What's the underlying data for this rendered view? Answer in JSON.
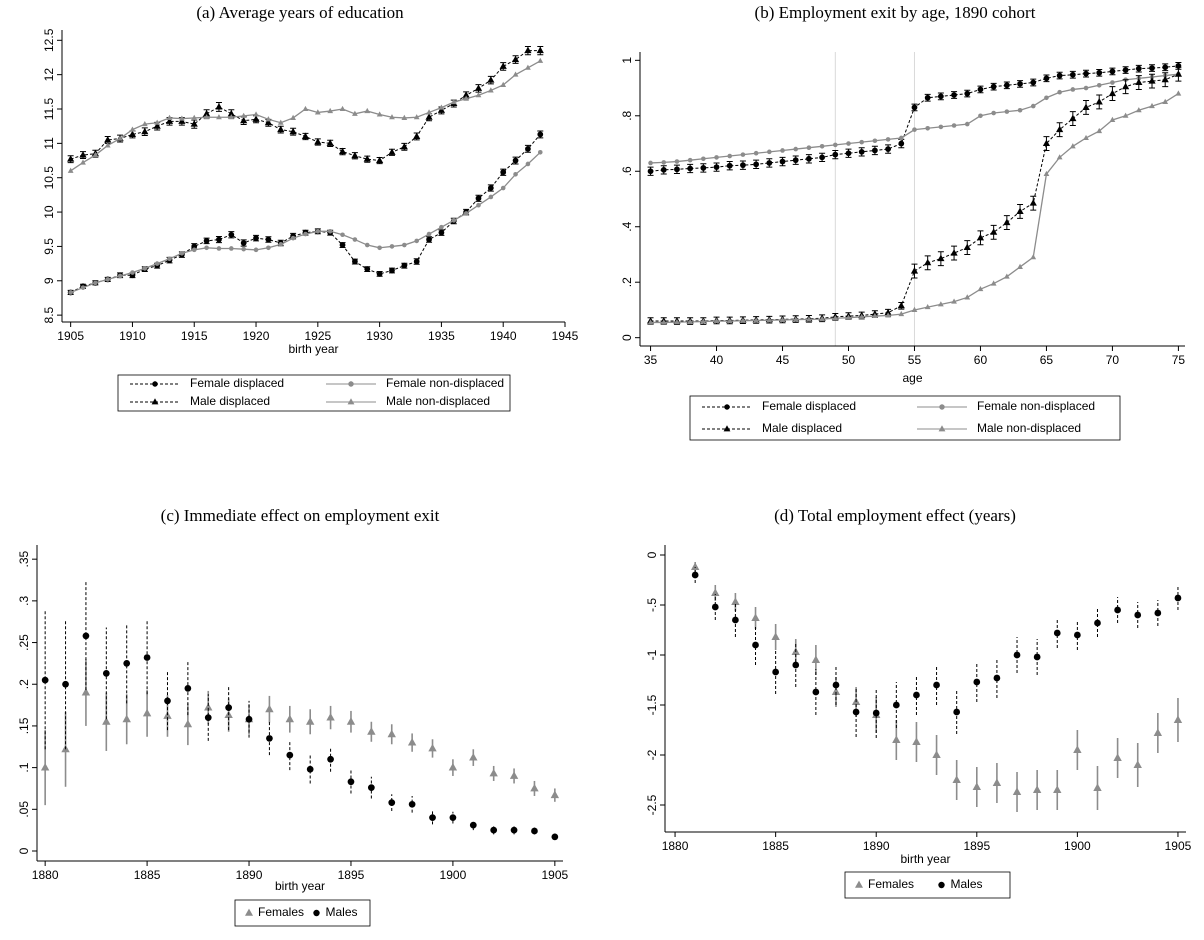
{
  "chart_data": [
    {
      "type": "line",
      "title": "(a) Average years of education",
      "x_label": "birth year",
      "x": [
        1905,
        1906,
        1907,
        1908,
        1909,
        1910,
        1911,
        1912,
        1913,
        1914,
        1915,
        1916,
        1917,
        1918,
        1919,
        1920,
        1921,
        1922,
        1923,
        1924,
        1925,
        1926,
        1927,
        1928,
        1929,
        1930,
        1931,
        1932,
        1933,
        1934,
        1935,
        1936,
        1937,
        1938,
        1939,
        1940,
        1941,
        1942,
        1943
      ],
      "xlim": [
        1904.3,
        1945
      ],
      "xticks": [
        1905,
        1910,
        1915,
        1920,
        1925,
        1930,
        1935,
        1940,
        1945
      ],
      "ylim": [
        8.4,
        12.65
      ],
      "yticks": [
        8.5,
        9,
        9.5,
        10,
        10.5,
        11,
        11.5,
        12,
        12.5
      ],
      "series": [
        {
          "name": "Female displaced",
          "color": "#000000",
          "marker": "circle",
          "line_style": "dashed",
          "values": [
            8.83,
            8.92,
            8.97,
            9.02,
            9.08,
            9.08,
            9.17,
            9.22,
            9.3,
            9.38,
            9.5,
            9.58,
            9.6,
            9.67,
            9.55,
            9.62,
            9.6,
            9.55,
            9.65,
            9.7,
            9.72,
            9.7,
            9.52,
            9.28,
            9.17,
            9.1,
            9.15,
            9.22,
            9.28,
            9.6,
            9.7,
            9.87,
            10.0,
            10.2,
            10.35,
            10.58,
            10.75,
            10.92,
            11.13
          ],
          "errors": [
            0.03,
            0.03,
            0.03,
            0.03,
            0.035,
            0.035,
            0.035,
            0.035,
            0.04,
            0.04,
            0.04,
            0.04,
            0.045,
            0.045,
            0.045,
            0.04,
            0.04,
            0.04,
            0.04,
            0.035,
            0.035,
            0.035,
            0.035,
            0.035,
            0.035,
            0.035,
            0.035,
            0.035,
            0.04,
            0.04,
            0.04,
            0.04,
            0.04,
            0.045,
            0.045,
            0.045,
            0.05,
            0.05,
            0.05
          ]
        },
        {
          "name": "Female non-displaced",
          "color": "#8c8c8c",
          "marker": "circle",
          "line_style": "solid",
          "values": [
            8.83,
            8.9,
            8.97,
            9.02,
            9.07,
            9.12,
            9.18,
            9.25,
            9.32,
            9.4,
            9.45,
            9.48,
            9.47,
            9.47,
            9.46,
            9.45,
            9.48,
            9.53,
            9.62,
            9.68,
            9.72,
            9.72,
            9.67,
            9.6,
            9.52,
            9.48,
            9.5,
            9.52,
            9.58,
            9.68,
            9.78,
            9.88,
            9.98,
            10.1,
            10.22,
            10.35,
            10.55,
            10.7,
            10.87
          ]
        },
        {
          "name": "Male displaced",
          "color": "#000000",
          "marker": "triangle",
          "line_style": "dashed",
          "values": [
            10.77,
            10.83,
            10.85,
            11.05,
            11.07,
            11.13,
            11.17,
            11.25,
            11.32,
            11.32,
            11.28,
            11.43,
            11.53,
            11.43,
            11.33,
            11.35,
            11.3,
            11.2,
            11.17,
            11.1,
            11.02,
            11.0,
            10.88,
            10.82,
            10.77,
            10.75,
            10.87,
            10.95,
            11.1,
            11.38,
            11.48,
            11.58,
            11.7,
            11.8,
            11.92,
            12.12,
            12.22,
            12.35,
            12.35
          ],
          "errors": [
            0.05,
            0.05,
            0.05,
            0.05,
            0.05,
            0.05,
            0.055,
            0.055,
            0.055,
            0.055,
            0.06,
            0.06,
            0.065,
            0.06,
            0.055,
            0.05,
            0.05,
            0.05,
            0.05,
            0.045,
            0.045,
            0.045,
            0.045,
            0.045,
            0.045,
            0.045,
            0.045,
            0.05,
            0.05,
            0.05,
            0.05,
            0.05,
            0.05,
            0.055,
            0.055,
            0.055,
            0.055,
            0.06,
            0.06
          ]
        },
        {
          "name": "Male non-displaced",
          "color": "#8c8c8c",
          "marker": "triangle",
          "line_style": "solid",
          "values": [
            10.6,
            10.72,
            10.83,
            10.97,
            11.07,
            11.2,
            11.28,
            11.3,
            11.37,
            11.36,
            11.37,
            11.38,
            11.38,
            11.38,
            11.4,
            11.42,
            11.35,
            11.3,
            11.37,
            11.5,
            11.45,
            11.47,
            11.5,
            11.43,
            11.47,
            11.42,
            11.38,
            11.37,
            11.38,
            11.45,
            11.52,
            11.6,
            11.65,
            11.7,
            11.77,
            11.85,
            12.0,
            12.1,
            12.2
          ]
        }
      ]
    },
    {
      "type": "line",
      "title": "(b) Employment exit by age, 1890 cohort",
      "x_label": "age",
      "x": [
        35,
        36,
        37,
        38,
        39,
        40,
        41,
        42,
        43,
        44,
        45,
        46,
        47,
        48,
        49,
        50,
        51,
        52,
        53,
        54,
        55,
        56,
        57,
        58,
        59,
        60,
        61,
        62,
        63,
        64,
        65,
        66,
        67,
        68,
        69,
        70,
        71,
        72,
        73,
        74,
        75
      ],
      "xlim": [
        34.2,
        75.5
      ],
      "xticks": [
        35,
        40,
        45,
        50,
        55,
        60,
        65,
        70,
        75
      ],
      "vlines": [
        49,
        55
      ],
      "ylim": [
        -0.03,
        1.03
      ],
      "yticks": [
        0,
        {
          "value": 0.2,
          "label": ".2"
        },
        {
          "value": 0.4,
          "label": ".4"
        },
        {
          "value": 0.6,
          "label": ".6"
        },
        {
          "value": 0.8,
          "label": ".8"
        },
        1
      ],
      "series": [
        {
          "name": "Female displaced",
          "color": "#000000",
          "marker": "circle",
          "line_style": "dashed",
          "values": [
            0.6,
            0.605,
            0.607,
            0.61,
            0.612,
            0.615,
            0.62,
            0.622,
            0.625,
            0.63,
            0.635,
            0.64,
            0.645,
            0.65,
            0.66,
            0.665,
            0.67,
            0.675,
            0.68,
            0.7,
            0.83,
            0.865,
            0.87,
            0.875,
            0.88,
            0.895,
            0.905,
            0.91,
            0.915,
            0.92,
            0.935,
            0.945,
            0.948,
            0.952,
            0.955,
            0.96,
            0.965,
            0.97,
            0.972,
            0.975,
            0.98
          ],
          "errors": [
            0.015,
            0.015,
            0.015,
            0.015,
            0.015,
            0.015,
            0.015,
            0.015,
            0.015,
            0.015,
            0.015,
            0.015,
            0.015,
            0.015,
            0.015,
            0.015,
            0.015,
            0.015,
            0.015,
            0.015,
            0.012,
            0.012,
            0.012,
            0.012,
            0.012,
            0.012,
            0.012,
            0.012,
            0.012,
            0.012,
            0.012,
            0.012,
            0.012,
            0.012,
            0.012,
            0.012,
            0.012,
            0.012,
            0.012,
            0.012,
            0.012
          ]
        },
        {
          "name": "Female non-displaced",
          "color": "#8c8c8c",
          "marker": "circle",
          "line_style": "solid",
          "values": [
            0.63,
            0.632,
            0.635,
            0.64,
            0.645,
            0.65,
            0.655,
            0.66,
            0.665,
            0.67,
            0.675,
            0.68,
            0.685,
            0.69,
            0.695,
            0.7,
            0.705,
            0.71,
            0.715,
            0.72,
            0.75,
            0.755,
            0.76,
            0.765,
            0.77,
            0.8,
            0.81,
            0.815,
            0.82,
            0.835,
            0.865,
            0.885,
            0.895,
            0.9,
            0.91,
            0.92,
            0.93,
            0.935,
            0.94,
            0.945,
            0.95
          ]
        },
        {
          "name": "Male displaced",
          "color": "#000000",
          "marker": "triangle",
          "line_style": "dashed",
          "values": [
            0.06,
            0.06,
            0.06,
            0.06,
            0.06,
            0.062,
            0.062,
            0.063,
            0.064,
            0.065,
            0.066,
            0.067,
            0.068,
            0.07,
            0.075,
            0.078,
            0.08,
            0.085,
            0.09,
            0.115,
            0.24,
            0.27,
            0.285,
            0.305,
            0.325,
            0.36,
            0.38,
            0.415,
            0.455,
            0.485,
            0.7,
            0.75,
            0.79,
            0.83,
            0.85,
            0.88,
            0.905,
            0.92,
            0.925,
            0.93,
            0.95
          ],
          "errors": [
            0.012,
            0.012,
            0.012,
            0.012,
            0.012,
            0.012,
            0.012,
            0.012,
            0.012,
            0.012,
            0.012,
            0.012,
            0.012,
            0.012,
            0.012,
            0.012,
            0.012,
            0.012,
            0.012,
            0.012,
            0.025,
            0.025,
            0.025,
            0.025,
            0.025,
            0.025,
            0.025,
            0.025,
            0.025,
            0.025,
            0.025,
            0.025,
            0.025,
            0.025,
            0.025,
            0.025,
            0.025,
            0.025,
            0.025,
            0.025,
            0.025
          ]
        },
        {
          "name": "Male non-displaced",
          "color": "#8c8c8c",
          "marker": "triangle",
          "line_style": "solid",
          "values": [
            0.055,
            0.055,
            0.056,
            0.057,
            0.058,
            0.06,
            0.06,
            0.061,
            0.062,
            0.063,
            0.064,
            0.065,
            0.066,
            0.067,
            0.07,
            0.072,
            0.075,
            0.078,
            0.08,
            0.085,
            0.1,
            0.11,
            0.12,
            0.13,
            0.145,
            0.175,
            0.195,
            0.22,
            0.255,
            0.29,
            0.59,
            0.65,
            0.69,
            0.72,
            0.745,
            0.785,
            0.8,
            0.82,
            0.835,
            0.85,
            0.88
          ]
        }
      ]
    },
    {
      "type": "scatter",
      "title": "(c) Immediate effect on employment exit",
      "x_label": "birth year",
      "x": [
        1880,
        1881,
        1882,
        1883,
        1884,
        1885,
        1886,
        1887,
        1888,
        1889,
        1890,
        1891,
        1892,
        1893,
        1894,
        1895,
        1896,
        1897,
        1898,
        1899,
        1900,
        1901,
        1902,
        1903,
        1904,
        1905
      ],
      "xlim": [
        1879.6,
        1905.4
      ],
      "xticks": [
        1880,
        1885,
        1890,
        1895,
        1900,
        1905
      ],
      "ylim": [
        -0.012,
        0.367
      ],
      "yticks": [
        0,
        {
          "value": 0.05,
          "label": ".05"
        },
        {
          "value": 0.1,
          "label": ".1"
        },
        {
          "value": 0.15,
          "label": ".15"
        },
        {
          "value": 0.2,
          "label": ".2"
        },
        {
          "value": 0.25,
          "label": ".25"
        },
        {
          "value": 0.3,
          "label": ".3"
        },
        {
          "value": 0.35,
          "label": ".35"
        }
      ],
      "series": [
        {
          "name": "Females",
          "color": "#8c8c8c",
          "marker": "triangle",
          "line_style": "solid",
          "values": [
            0.1,
            0.122,
            0.19,
            0.155,
            0.158,
            0.165,
            0.162,
            0.152,
            0.172,
            0.163,
            0.158,
            0.17,
            0.158,
            0.155,
            0.16,
            0.155,
            0.143,
            0.14,
            0.13,
            0.123,
            0.1,
            0.112,
            0.093,
            0.09,
            0.075,
            0.067
          ],
          "errors": [
            0.045,
            0.045,
            0.04,
            0.035,
            0.03,
            0.028,
            0.025,
            0.025,
            0.02,
            0.02,
            0.018,
            0.016,
            0.016,
            0.015,
            0.014,
            0.013,
            0.012,
            0.012,
            0.011,
            0.011,
            0.01,
            0.01,
            0.009,
            0.009,
            0.009,
            0.008
          ]
        },
        {
          "name": "Males",
          "color": "#000000",
          "marker": "circle",
          "line_style": "dashed",
          "values": [
            0.205,
            0.2,
            0.258,
            0.213,
            0.225,
            0.232,
            0.18,
            0.195,
            0.16,
            0.172,
            0.158,
            0.135,
            0.115,
            0.098,
            0.11,
            0.083,
            0.076,
            0.058,
            0.056,
            0.04,
            0.04,
            0.031,
            0.025,
            0.025,
            0.024,
            0.017
          ],
          "errors": [
            0.083,
            0.078,
            0.065,
            0.055,
            0.048,
            0.044,
            0.035,
            0.032,
            0.028,
            0.027,
            0.022,
            0.02,
            0.018,
            0.017,
            0.015,
            0.014,
            0.013,
            0.01,
            0.01,
            0.008,
            0.007,
            0.006,
            0.005,
            0.005,
            0.004,
            0.004
          ]
        }
      ]
    },
    {
      "type": "scatter",
      "title": "(d) Total employment effect (years)",
      "x_label": "birth year",
      "x": [
        1881,
        1882,
        1883,
        1884,
        1885,
        1886,
        1887,
        1888,
        1889,
        1890,
        1891,
        1892,
        1893,
        1894,
        1895,
        1896,
        1897,
        1898,
        1899,
        1900,
        1901,
        1902,
        1903,
        1904,
        1905
      ],
      "xlim": [
        1879.5,
        1905.4
      ],
      "xticks": [
        1880,
        1885,
        1890,
        1895,
        1900,
        1905
      ],
      "ylim": [
        -2.77,
        0.1
      ],
      "yticks": [
        0,
        {
          "value": -0.5,
          "label": "-.5"
        },
        -1,
        -1.5,
        -2,
        -2.5
      ],
      "series": [
        {
          "name": "Females",
          "color": "#8c8c8c",
          "marker": "triangle",
          "line_style": "solid",
          "values": [
            -0.12,
            -0.38,
            -0.47,
            -0.63,
            -0.82,
            -0.97,
            -1.05,
            -1.37,
            -1.47,
            -1.6,
            -1.85,
            -1.87,
            -2.0,
            -2.25,
            -2.32,
            -2.28,
            -2.37,
            -2.35,
            -2.35,
            -1.95,
            -2.33,
            -2.03,
            -2.1,
            -1.78,
            -1.65
          ],
          "errors": [
            0.05,
            0.08,
            0.09,
            0.11,
            0.13,
            0.13,
            0.15,
            0.15,
            0.15,
            0.18,
            0.2,
            0.2,
            0.2,
            0.2,
            0.2,
            0.2,
            0.2,
            0.2,
            0.2,
            0.2,
            0.22,
            0.2,
            0.22,
            0.2,
            0.22
          ]
        },
        {
          "name": "Males",
          "color": "#000000",
          "marker": "circle",
          "line_style": "dashed",
          "values": [
            -0.2,
            -0.52,
            -0.65,
            -0.9,
            -1.17,
            -1.1,
            -1.37,
            -1.3,
            -1.57,
            -1.58,
            -1.5,
            -1.4,
            -1.3,
            -1.57,
            -1.27,
            -1.23,
            -1.0,
            -1.02,
            -0.78,
            -0.8,
            -0.68,
            -0.55,
            -0.6,
            -0.58,
            -0.43
          ],
          "errors": [
            0.08,
            0.13,
            0.17,
            0.2,
            0.22,
            0.22,
            0.23,
            0.2,
            0.25,
            0.25,
            0.23,
            0.2,
            0.2,
            0.22,
            0.2,
            0.2,
            0.18,
            0.18,
            0.15,
            0.15,
            0.14,
            0.13,
            0.13,
            0.13,
            0.12
          ]
        }
      ]
    }
  ]
}
